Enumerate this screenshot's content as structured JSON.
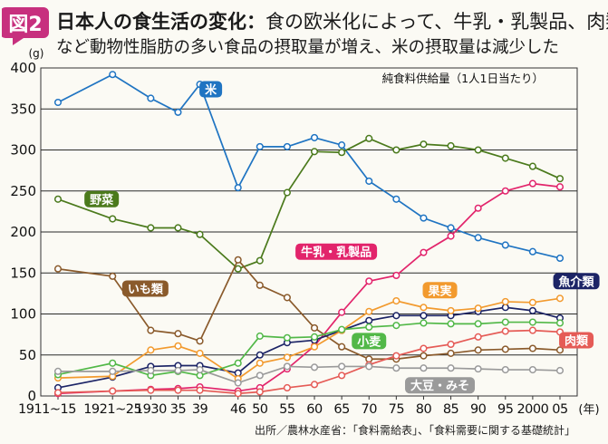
{
  "header": {
    "badge_label": "図2",
    "title_main": "日本人の食生活の変化：",
    "title_rest": "食の欧米化によって、牛乳・乳製品、肉類",
    "subtitle": "など動物性脂肪の多い食品の摂取量が増え、米の摂取量は減少した"
  },
  "source": "出所／農林水産省：「食料需給表」、「食料需要に関する基礎統計」",
  "colors": {
    "米": "#1f74c2",
    "野菜": "#4b7a1c",
    "いも類": "#8a5a2b",
    "牛乳・乳製品": "#e2246b",
    "魚介類": "#1c2466",
    "果実": "#f29a2e",
    "小麦": "#52b848",
    "肉類": "#e55b56",
    "大豆・みそ": "#9a9a9a"
  },
  "chart_data": {
    "type": "line",
    "title": "日本人の食生活の変化",
    "annotation": "純食料供給量（1人1日当たり）",
    "ylabel": "(g)",
    "xlabel": "(年)",
    "ylim": [
      0,
      400
    ],
    "yticks": [
      0,
      50,
      100,
      150,
      200,
      250,
      300,
      350,
      400
    ],
    "grid": true,
    "categories": [
      "1911~15",
      "1921~25",
      "1930",
      "35",
      "39",
      "46",
      "50",
      "55",
      "60",
      "65",
      "70",
      "75",
      "80",
      "85",
      "90",
      "95",
      "2000",
      "05"
    ],
    "x_positions": [
      1913,
      1923,
      1930,
      1935,
      1939,
      1946,
      1950,
      1955,
      1960,
      1965,
      1970,
      1975,
      1980,
      1985,
      1990,
      1995,
      2000,
      2005
    ],
    "series": [
      {
        "name": "米",
        "label_anchor": {
          "x": 1941,
          "y": 374
        },
        "points": [
          [
            1913,
            358
          ],
          [
            1923,
            392
          ],
          [
            1930,
            363
          ],
          [
            1935,
            346
          ],
          [
            1939,
            380
          ],
          [
            1946,
            254
          ],
          [
            1950,
            304
          ],
          [
            1955,
            304
          ],
          [
            1960,
            315
          ],
          [
            1965,
            306
          ],
          [
            1970,
            262
          ],
          [
            1975,
            240
          ],
          [
            1980,
            217
          ],
          [
            1985,
            205
          ],
          [
            1990,
            193
          ],
          [
            1995,
            184
          ],
          [
            2000,
            176
          ],
          [
            2005,
            168
          ]
        ]
      },
      {
        "name": "野菜",
        "label_anchor": {
          "x": 1921,
          "y": 240
        },
        "points": [
          [
            1913,
            240
          ],
          [
            1923,
            216
          ],
          [
            1930,
            205
          ],
          [
            1935,
            205
          ],
          [
            1939,
            197
          ],
          [
            1946,
            155
          ],
          [
            1950,
            165
          ],
          [
            1955,
            248
          ],
          [
            1960,
            298
          ],
          [
            1965,
            297
          ],
          [
            1970,
            314
          ],
          [
            1975,
            300
          ],
          [
            1980,
            307
          ],
          [
            1985,
            305
          ],
          [
            1990,
            300
          ],
          [
            1995,
            290
          ],
          [
            2000,
            280
          ],
          [
            2005,
            265
          ]
        ]
      },
      {
        "name": "いも類",
        "label_anchor": {
          "x": 1929,
          "y": 131
        },
        "points": [
          [
            1913,
            155
          ],
          [
            1923,
            146
          ],
          [
            1930,
            80
          ],
          [
            1935,
            76
          ],
          [
            1939,
            67
          ],
          [
            1946,
            166
          ],
          [
            1950,
            135
          ],
          [
            1955,
            120
          ],
          [
            1960,
            83
          ],
          [
            1965,
            60
          ],
          [
            1970,
            45
          ],
          [
            1975,
            45
          ],
          [
            1980,
            49
          ],
          [
            1985,
            52
          ],
          [
            1990,
            56
          ],
          [
            1995,
            57
          ],
          [
            2000,
            58
          ],
          [
            2005,
            56
          ]
        ]
      },
      {
        "name": "牛乳・乳製品",
        "label_anchor": {
          "x": 1964,
          "y": 176
        },
        "points": [
          [
            1913,
            3
          ],
          [
            1923,
            6
          ],
          [
            1930,
            8
          ],
          [
            1935,
            9
          ],
          [
            1939,
            11
          ],
          [
            1946,
            6
          ],
          [
            1950,
            10
          ],
          [
            1955,
            33
          ],
          [
            1960,
            61
          ],
          [
            1965,
            102
          ],
          [
            1970,
            140
          ],
          [
            1975,
            147
          ],
          [
            1980,
            175
          ],
          [
            1985,
            195
          ],
          [
            1990,
            229
          ],
          [
            1995,
            250
          ],
          [
            2000,
            259
          ],
          [
            2005,
            255
          ]
        ]
      },
      {
        "name": "魚介類",
        "label_anchor": {
          "x": 2008,
          "y": 140
        },
        "points": [
          [
            1913,
            10
          ],
          [
            1923,
            23
          ],
          [
            1930,
            36
          ],
          [
            1935,
            37
          ],
          [
            1939,
            37
          ],
          [
            1946,
            28
          ],
          [
            1950,
            50
          ],
          [
            1955,
            65
          ],
          [
            1960,
            68
          ],
          [
            1965,
            80
          ],
          [
            1970,
            92
          ],
          [
            1975,
            98
          ],
          [
            1980,
            98
          ],
          [
            1985,
            98
          ],
          [
            1990,
            103
          ],
          [
            1995,
            108
          ],
          [
            2000,
            104
          ],
          [
            2005,
            95
          ]
        ]
      },
      {
        "name": "果実",
        "label_anchor": {
          "x": 1983,
          "y": 129
        },
        "points": [
          [
            1913,
            22
          ],
          [
            1923,
            24
          ],
          [
            1930,
            56
          ],
          [
            1935,
            61
          ],
          [
            1939,
            52
          ],
          [
            1946,
            21
          ],
          [
            1950,
            40
          ],
          [
            1955,
            47
          ],
          [
            1960,
            60
          ],
          [
            1965,
            80
          ],
          [
            1970,
            103
          ],
          [
            1975,
            116
          ],
          [
            1980,
            108
          ],
          [
            1985,
            104
          ],
          [
            1990,
            107
          ],
          [
            1995,
            115
          ],
          [
            2000,
            114
          ],
          [
            2005,
            119
          ]
        ]
      },
      {
        "name": "小麦",
        "label_anchor": {
          "x": 1970,
          "y": 67
        },
        "points": [
          [
            1913,
            26
          ],
          [
            1923,
            40
          ],
          [
            1930,
            25
          ],
          [
            1935,
            30
          ],
          [
            1939,
            25
          ],
          [
            1946,
            40
          ],
          [
            1950,
            73
          ],
          [
            1955,
            71
          ],
          [
            1960,
            72
          ],
          [
            1965,
            81
          ],
          [
            1970,
            84
          ],
          [
            1975,
            86
          ],
          [
            1980,
            89
          ],
          [
            1985,
            88
          ],
          [
            1990,
            88
          ],
          [
            1995,
            90
          ],
          [
            2000,
            90
          ],
          [
            2005,
            89
          ]
        ]
      },
      {
        "name": "肉類",
        "label_anchor": {
          "x": 2008,
          "y": 68
        },
        "points": [
          [
            1913,
            4
          ],
          [
            1923,
            6
          ],
          [
            1930,
            7
          ],
          [
            1935,
            7
          ],
          [
            1939,
            7
          ],
          [
            1946,
            3
          ],
          [
            1950,
            5
          ],
          [
            1955,
            10
          ],
          [
            1960,
            14
          ],
          [
            1965,
            25
          ],
          [
            1970,
            38
          ],
          [
            1975,
            49
          ],
          [
            1980,
            58
          ],
          [
            1985,
            63
          ],
          [
            1990,
            72
          ],
          [
            1995,
            79
          ],
          [
            2000,
            80
          ],
          [
            2005,
            78
          ]
        ]
      },
      {
        "name": "大豆・みそ",
        "label_anchor": {
          "x": 1983,
          "y": 13
        },
        "points": [
          [
            1913,
            30
          ],
          [
            1923,
            30
          ],
          [
            1930,
            31
          ],
          [
            1935,
            31
          ],
          [
            1939,
            32
          ],
          [
            1946,
            16
          ],
          [
            1950,
            25
          ],
          [
            1955,
            36
          ],
          [
            1960,
            35
          ],
          [
            1965,
            36
          ],
          [
            1970,
            36
          ],
          [
            1975,
            34
          ],
          [
            1980,
            34
          ],
          [
            1985,
            34
          ],
          [
            1990,
            33
          ],
          [
            1995,
            32
          ],
          [
            2000,
            32
          ],
          [
            2005,
            31
          ]
        ]
      }
    ]
  }
}
